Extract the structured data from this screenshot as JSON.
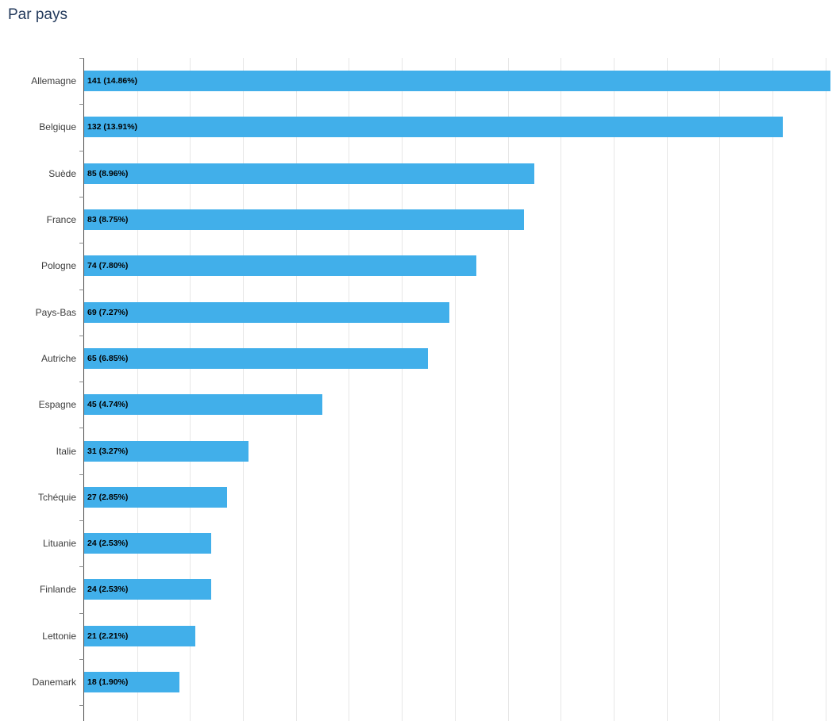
{
  "title": "Par pays",
  "chart_data": {
    "type": "bar",
    "orientation": "horizontal",
    "title": "Par pays",
    "xlabel": "",
    "ylabel": "",
    "categories": [
      "Allemagne",
      "Belgique",
      "Suède",
      "France",
      "Pologne",
      "Pays-Bas",
      "Autriche",
      "Espagne",
      "Italie",
      "Tchéquie",
      "Lituanie",
      "Finlande",
      "Lettonie",
      "Danemark"
    ],
    "values": [
      141,
      132,
      85,
      83,
      74,
      69,
      65,
      45,
      31,
      27,
      24,
      24,
      21,
      18
    ],
    "data_labels": [
      "141 (14.86%)",
      "132 (13.91%)",
      "85 (8.96%)",
      "83 (8.75%)",
      "74 (7.80%)",
      "69 (7.27%)",
      "65 (6.85%)",
      "45 (4.74%)",
      "31 (3.27%)",
      "27 (2.85%)",
      "24 (2.53%)",
      "24 (2.53%)",
      "21 (2.21%)",
      "18 (1.90%)"
    ],
    "xlim": [
      0,
      142
    ],
    "grid_step": 10,
    "grid": true,
    "legend": false,
    "bar_color": "#41AFEA",
    "grid_color": "#E7E7E7",
    "axis_color": "#4A4A4A"
  }
}
